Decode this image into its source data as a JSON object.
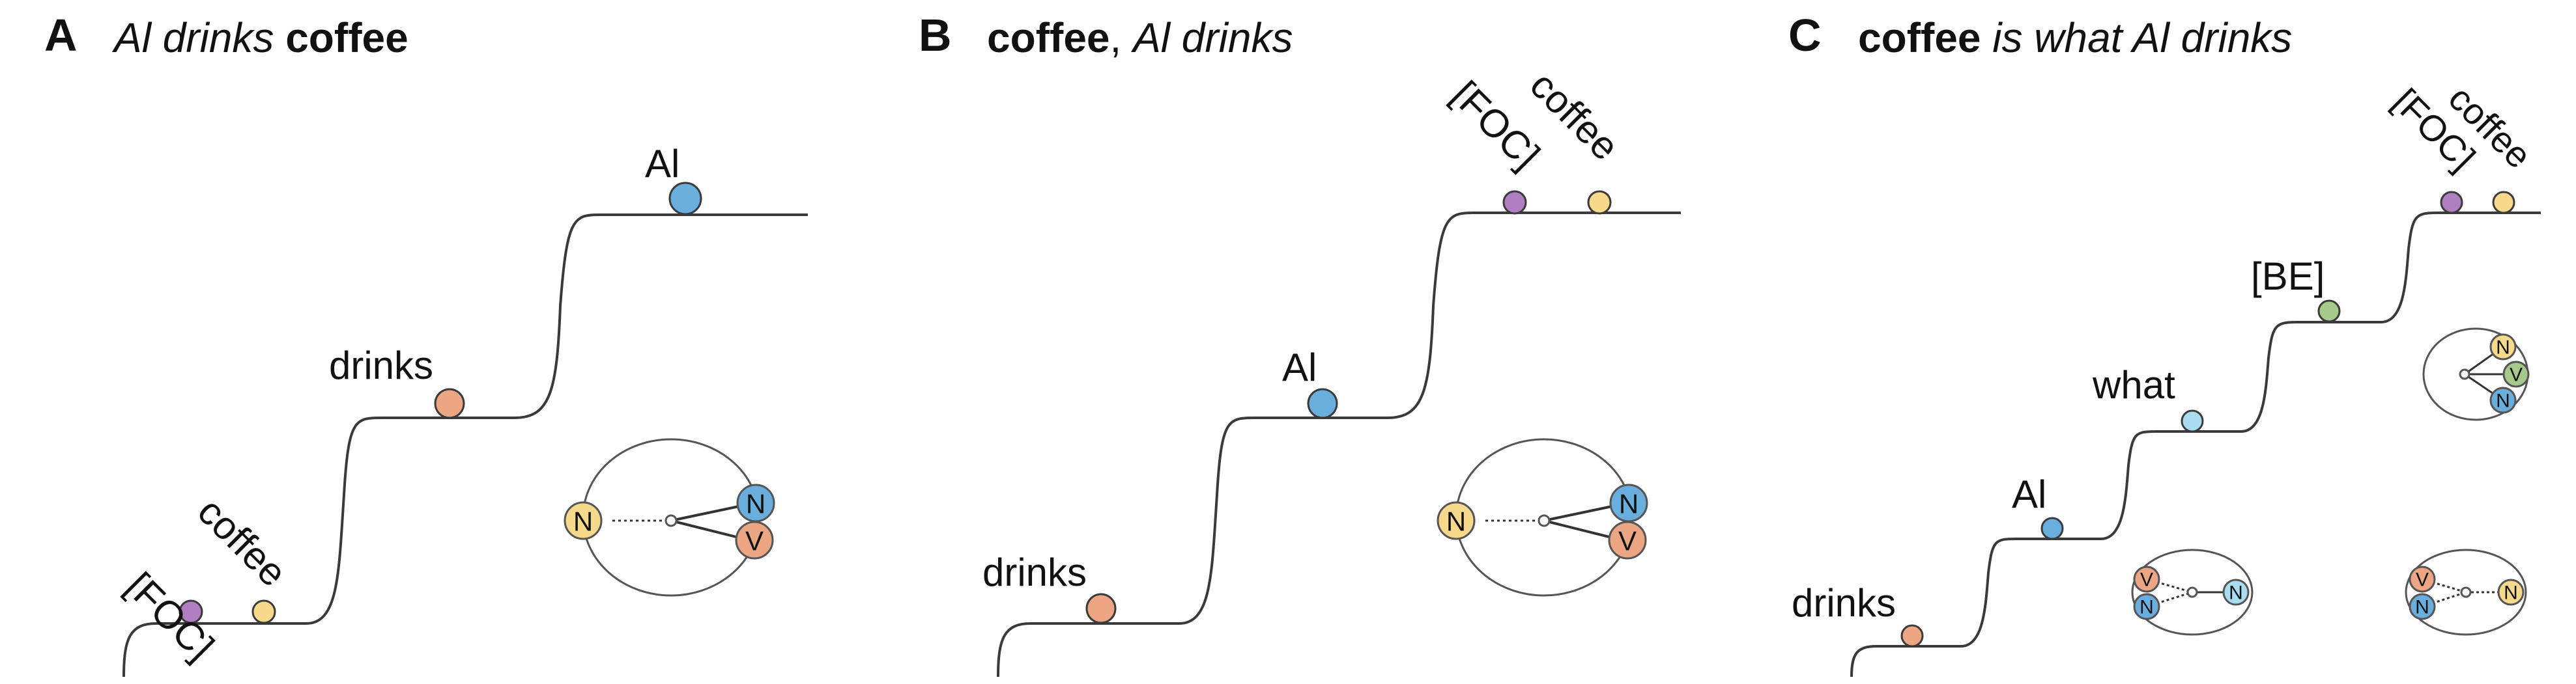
{
  "colors": {
    "FOC": "#b07fc2",
    "coffee": "#f6d98a",
    "Al": "#6aaede",
    "drinks": "#eca684",
    "what": "#a9dcf1",
    "BE": "#a7c98c",
    "line": "#3a3a3a"
  },
  "panels": [
    {
      "letter": "A",
      "title_parts": [
        {
          "text": "Al drinks",
          "style": "italic"
        },
        {
          "text": " ",
          "style": "plain"
        },
        {
          "text": "coffee",
          "style": "bold"
        }
      ],
      "tokens": [
        "[FOC]",
        "coffee",
        "drinks",
        "Al"
      ],
      "diagram_nodes": [
        "N",
        "N",
        "V"
      ]
    },
    {
      "letter": "B",
      "title_parts": [
        {
          "text": "coffee",
          "style": "bold"
        },
        {
          "text": ", ",
          "style": "plain"
        },
        {
          "text": "Al drinks",
          "style": "italic"
        }
      ],
      "tokens": [
        "drinks",
        "Al",
        "[FOC]",
        "coffee"
      ],
      "diagram_nodes": [
        "N",
        "N",
        "V"
      ]
    },
    {
      "letter": "C",
      "title_parts": [
        {
          "text": "coffee",
          "style": "bold"
        },
        {
          "text": " ",
          "style": "plain"
        },
        {
          "text": "is what Al drinks",
          "style": "italic"
        }
      ],
      "tokens": [
        "drinks",
        "Al",
        "what",
        "[BE]",
        "[FOC]",
        "coffee"
      ],
      "diagram_nodes_top": [
        "N",
        "V",
        "N"
      ],
      "diagram_nodes_left": [
        "V",
        "N",
        "N"
      ],
      "diagram_nodes_right": [
        "V",
        "N",
        "N"
      ]
    }
  ]
}
